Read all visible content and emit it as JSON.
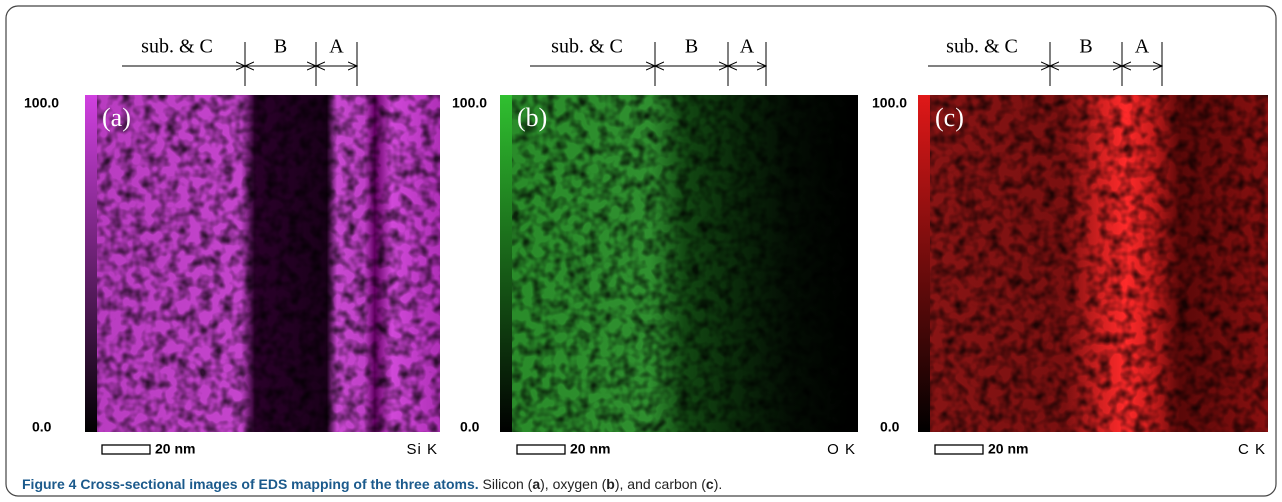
{
  "figure": {
    "panels": [
      {
        "label": "(a)",
        "max": "100.0",
        "min": "0.0",
        "scale": "20 nm",
        "element": "Si K",
        "regions": [
          "sub. & C",
          "B",
          "A"
        ]
      },
      {
        "label": "(b)",
        "max": "100.0",
        "min": "0.0",
        "scale": "20 nm",
        "element": "O K",
        "regions": [
          "sub. & C",
          "B",
          "A"
        ]
      },
      {
        "label": "(c)",
        "max": "100.0",
        "min": "0.0",
        "scale": "20 nm",
        "element": "C K",
        "regions": [
          "sub. & C",
          "B",
          "A"
        ]
      }
    ],
    "caption": {
      "title": "Figure 4 Cross-sectional images of EDS mapping of the three atoms.",
      "parts": [
        "Silicon (",
        "a",
        "), oxygen (",
        "b",
        "), and carbon (",
        "c",
        ")."
      ]
    }
  }
}
